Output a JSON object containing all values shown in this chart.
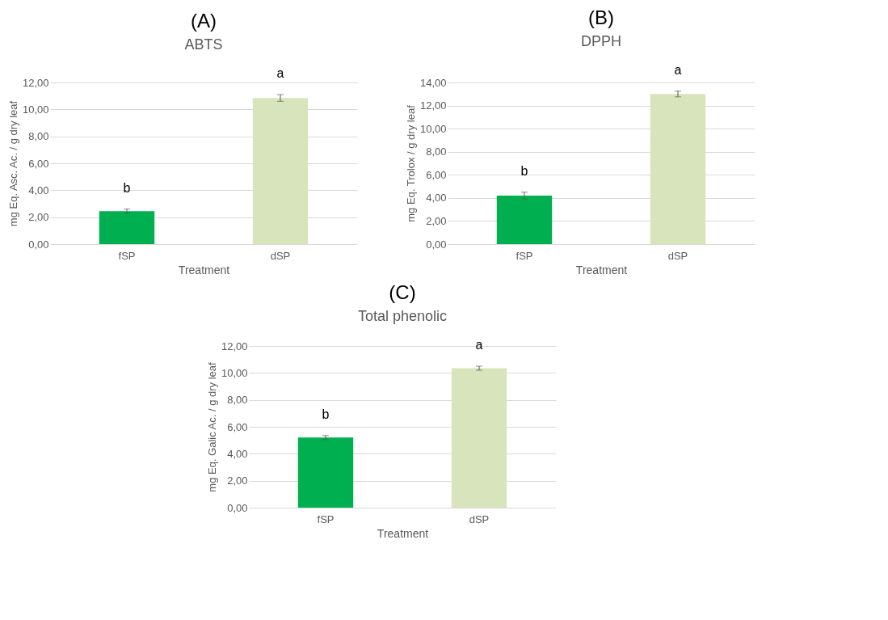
{
  "chart_data": [
    {
      "type": "bar",
      "subtitle": "(A)",
      "title": "ABTS",
      "xlabel": "Treatment",
      "ylabel": "mg Eq. Asc. Ac. / g dry leaf",
      "categories": [
        "fSP",
        "dSP"
      ],
      "values": [
        2.45,
        10.85
      ],
      "errors": [
        0.15,
        0.25
      ],
      "colors": [
        "#00b050",
        "#d8e4bc"
      ],
      "ylim": [
        0,
        12
      ],
      "yticks": [
        {
          "value": 0,
          "label": "0,00"
        },
        {
          "value": 2,
          "label": "2,00"
        },
        {
          "value": 4,
          "label": "4,00"
        },
        {
          "value": 6,
          "label": "6,00"
        },
        {
          "value": 8,
          "label": "8,00"
        },
        {
          "value": 10,
          "label": "10,00"
        },
        {
          "value": 12,
          "label": "12,00"
        }
      ],
      "grid": "y",
      "annotations": [
        "b",
        "a"
      ]
    },
    {
      "type": "bar",
      "subtitle": "(B)",
      "title": "DPPH",
      "xlabel": "Treatment",
      "ylabel": "mg Eq. Trolox / g dry leaf",
      "categories": [
        "fSP",
        "dSP"
      ],
      "values": [
        4.2,
        13.0
      ],
      "errors": [
        0.3,
        0.25
      ],
      "colors": [
        "#00b050",
        "#d8e4bc"
      ],
      "ylim": [
        0,
        14
      ],
      "yticks": [
        {
          "value": 0,
          "label": "0,00"
        },
        {
          "value": 2,
          "label": "2,00"
        },
        {
          "value": 4,
          "label": "4,00"
        },
        {
          "value": 6,
          "label": "6,00"
        },
        {
          "value": 8,
          "label": "8,00"
        },
        {
          "value": 10,
          "label": "10,00"
        },
        {
          "value": 12,
          "label": "12,00"
        },
        {
          "value": 14,
          "label": "14,00"
        }
      ],
      "grid": "y",
      "annotations": [
        "b",
        "a"
      ]
    },
    {
      "type": "bar",
      "subtitle": "(C)",
      "title": "Total phenolic",
      "xlabel": "Treatment",
      "ylabel": "mg Eq. Galic Ac. / g dry leaf",
      "categories": [
        "fSP",
        "dSP"
      ],
      "values": [
        5.2,
        10.35
      ],
      "errors": [
        0.15,
        0.15
      ],
      "colors": [
        "#00b050",
        "#d8e4bc"
      ],
      "ylim": [
        0,
        12
      ],
      "yticks": [
        {
          "value": 0,
          "label": "0,00"
        },
        {
          "value": 2,
          "label": "2,00"
        },
        {
          "value": 4,
          "label": "4,00"
        },
        {
          "value": 6,
          "label": "6,00"
        },
        {
          "value": 8,
          "label": "8,00"
        },
        {
          "value": 10,
          "label": "10,00"
        },
        {
          "value": 12,
          "label": "12,00"
        }
      ],
      "grid": "y",
      "annotations": [
        "b",
        "a"
      ]
    }
  ]
}
